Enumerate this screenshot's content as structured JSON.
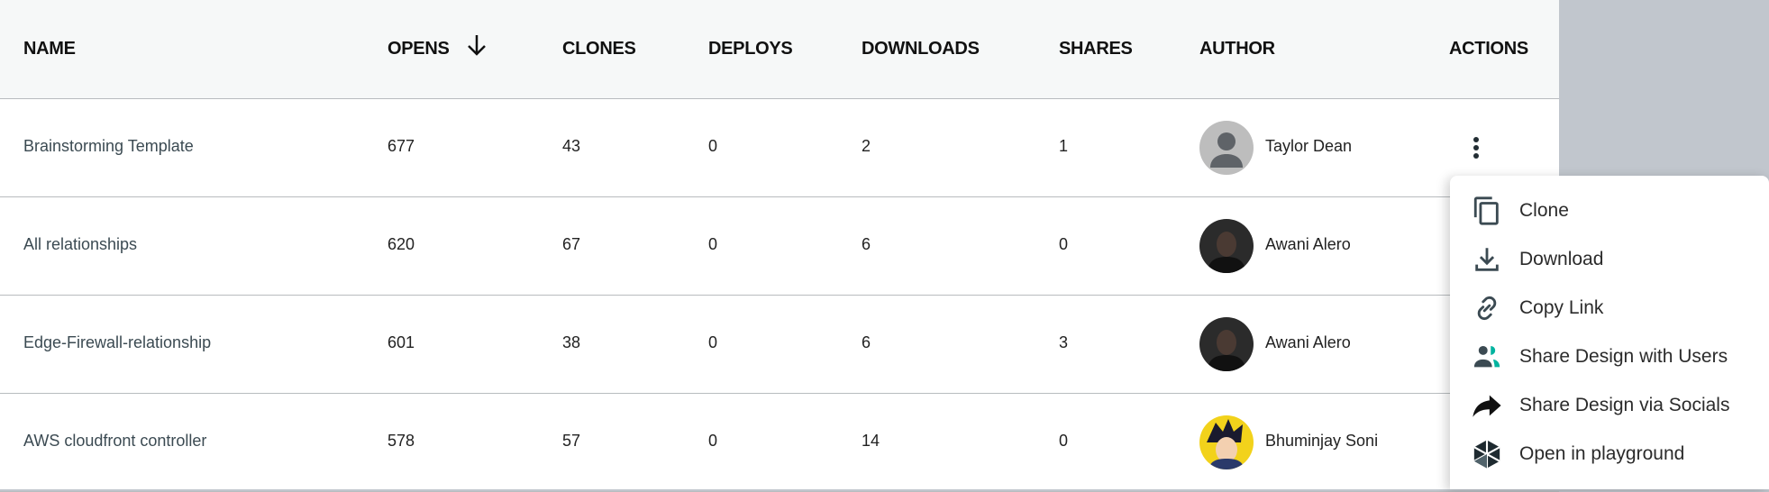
{
  "columns": [
    "NAME",
    "OPENS",
    "CLONES",
    "DEPLOYS",
    "DOWNLOADS",
    "SHARES",
    "AUTHOR",
    "ACTIONS"
  ],
  "sort": {
    "column": "OPENS",
    "direction": "descending",
    "icon": "arrow-down-icon"
  },
  "rows": [
    {
      "name": "Brainstorming Template",
      "opens": "677",
      "clones": "43",
      "deploys": "0",
      "downloads": "2",
      "shares": "1",
      "author": "Taylor Dean",
      "avatar": "default-user-avatar"
    },
    {
      "name": "All relationships",
      "opens": "620",
      "clones": "67",
      "deploys": "0",
      "downloads": "6",
      "shares": "0",
      "author": "Awani Alero",
      "avatar": "photo-avatar"
    },
    {
      "name": "Edge-Firewall-relationship",
      "opens": "601",
      "clones": "38",
      "deploys": "0",
      "downloads": "6",
      "shares": "3",
      "author": "Awani Alero",
      "avatar": "photo-avatar"
    },
    {
      "name": "AWS cloudfront controller",
      "opens": "578",
      "clones": "57",
      "deploys": "0",
      "downloads": "14",
      "shares": "0",
      "author": "Bhuminjay Soni",
      "avatar": "anime-avatar"
    }
  ],
  "menu": {
    "items": [
      {
        "label": "Clone",
        "icon": "copy-icon"
      },
      {
        "label": "Download",
        "icon": "download-icon"
      },
      {
        "label": "Copy Link",
        "icon": "link-icon"
      },
      {
        "label": "Share Design with Users",
        "icon": "users-icon"
      },
      {
        "label": "Share Design via Socials",
        "icon": "share-arrow-icon"
      },
      {
        "label": "Open in playground",
        "icon": "playground-icon"
      }
    ]
  },
  "colors": {
    "header_bg": "#f6f8f8",
    "accent": "#00b39f",
    "backdrop": "#c1c6cd"
  }
}
